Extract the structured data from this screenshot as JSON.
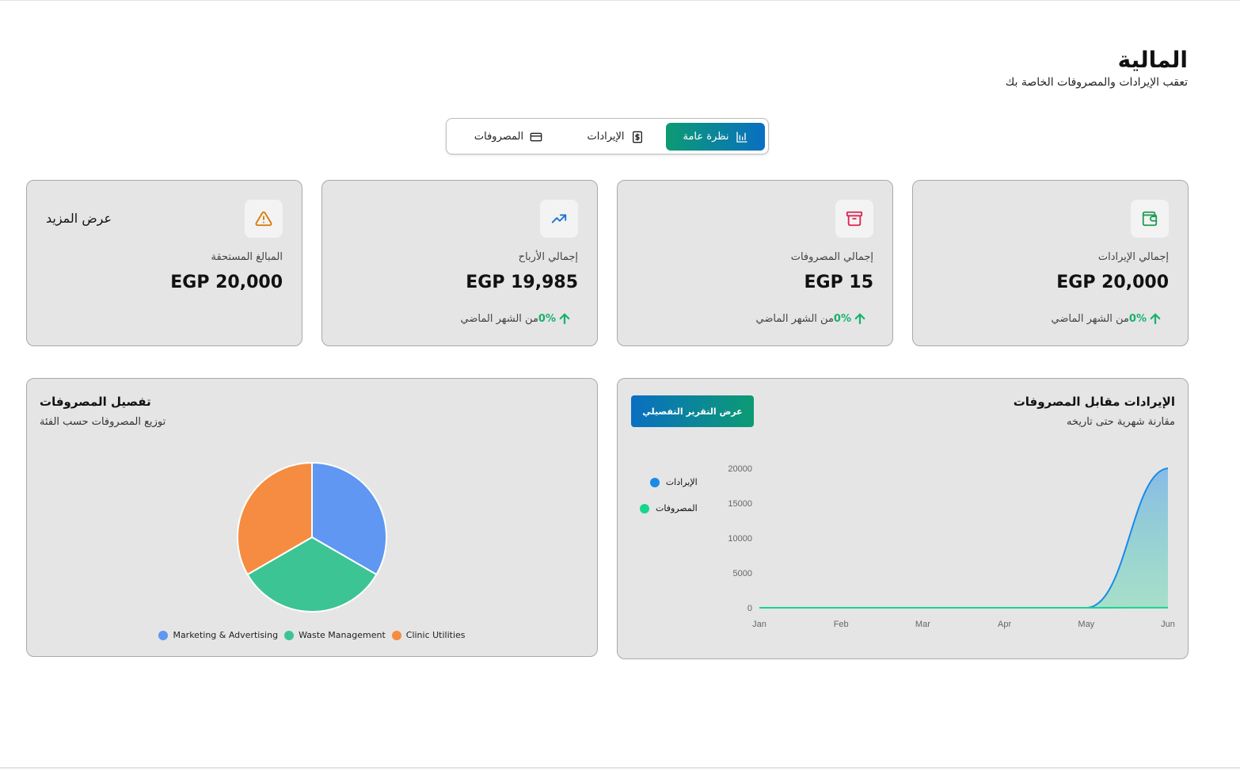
{
  "header": {
    "title": "المالية",
    "subtitle": "تعقب الإيرادات والمصروفات الخاصة بك"
  },
  "tabs": [
    {
      "label": "نظرة عامة",
      "icon": "chart-icon",
      "active": true
    },
    {
      "label": "الإيرادات",
      "icon": "dollar-icon",
      "active": false
    },
    {
      "label": "المصروفات",
      "icon": "credit-card-icon",
      "active": false
    }
  ],
  "stats": [
    {
      "label": "إجمالي الإيرادات",
      "value": "EGP 20,000",
      "change_pct": "0%",
      "change_text": "من الشهر الماضي",
      "icon": "wallet-icon",
      "icon_color": "#1f9d55"
    },
    {
      "label": "إجمالي المصروفات",
      "value": "EGP 15",
      "change_pct": "0%",
      "change_text": "من الشهر الماضي",
      "icon": "archive-icon",
      "icon_color": "#e0234e"
    },
    {
      "label": "إجمالي الأرباح",
      "value": "EGP 19,985",
      "change_pct": "0%",
      "change_text": "من الشهر الماضي",
      "icon": "trending-up-icon",
      "icon_color": "#1a73c9"
    },
    {
      "label": "المبالغ المستحقة",
      "value": "EGP 20,000",
      "more": "عرض المزيد",
      "icon": "warning-icon",
      "icon_color": "#d97706"
    }
  ],
  "revenue_panel": {
    "title": "الإيرادات مقابل المصروفات",
    "subtitle": "مقارنة شهرية حتى تاريخه",
    "button": "عرض التقرير التفصيلي"
  },
  "expense_panel": {
    "title": "تفصيل المصروفات",
    "subtitle": "توزيع المصروفات حسب الفئة"
  },
  "chart_data": [
    {
      "type": "area",
      "x": [
        "Jan",
        "Feb",
        "Mar",
        "Apr",
        "May",
        "Jun"
      ],
      "ylim": [
        0,
        20000
      ],
      "yticks": [
        "0",
        "5000",
        "10000",
        "15000",
        "20000"
      ],
      "series": [
        {
          "name": "الإيرادات",
          "values": [
            0,
            0,
            0,
            0,
            0,
            20000
          ],
          "color": "#1a8ae8"
        },
        {
          "name": "المصروفات",
          "values": [
            0,
            0,
            0,
            0,
            0,
            15
          ],
          "color": "#16d58e"
        }
      ],
      "legend": "left"
    },
    {
      "type": "pie",
      "categories": [
        "Marketing & Advertising",
        "Waste Management",
        "Clinic Utilities"
      ],
      "values": [
        5,
        5,
        5
      ],
      "colors": [
        "#5f97f2",
        "#3cc495",
        "#f58c41"
      ],
      "legend": "bottom"
    }
  ]
}
